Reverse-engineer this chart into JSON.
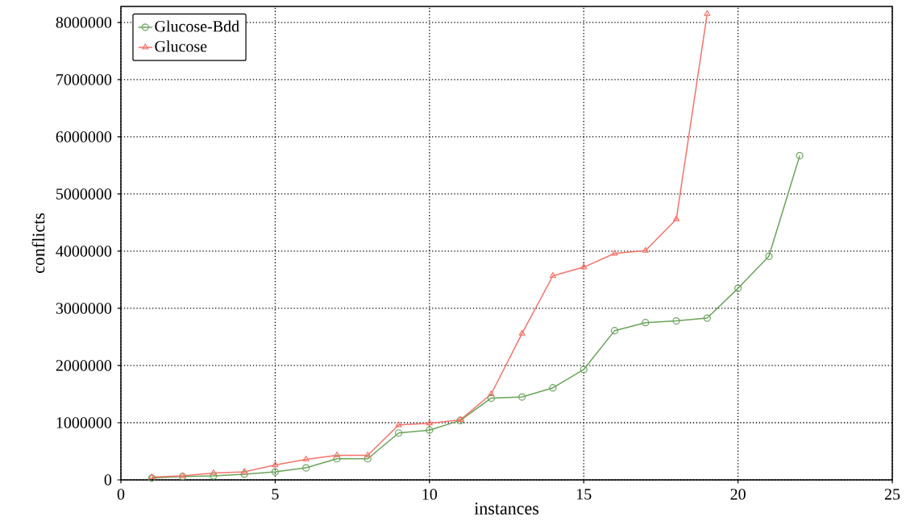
{
  "chart_data": {
    "type": "line",
    "xlabel": "instances",
    "ylabel": "conflicts",
    "series": [
      {
        "name": "Glucose-Bdd",
        "color": "#6aa35a",
        "marker": "circle",
        "x": [
          1,
          2,
          3,
          4,
          5,
          6,
          7,
          8,
          9,
          10,
          11,
          12,
          13,
          14,
          15,
          16,
          17,
          18,
          19,
          20,
          21,
          22
        ],
        "values": [
          30000,
          60000,
          70000,
          100000,
          140000,
          210000,
          370000,
          370000,
          820000,
          870000,
          1040000,
          1430000,
          1450000,
          1610000,
          1930000,
          2610000,
          2750000,
          2780000,
          2830000,
          3350000,
          3910000,
          5670000
        ]
      },
      {
        "name": "Glucose",
        "color": "#f4736a",
        "marker": "triangle",
        "x": [
          1,
          2,
          3,
          4,
          5,
          6,
          7,
          8,
          9,
          10,
          11,
          12,
          13,
          14,
          15,
          16,
          17,
          18,
          19
        ],
        "values": [
          50000,
          70000,
          120000,
          140000,
          260000,
          360000,
          430000,
          430000,
          960000,
          990000,
          1050000,
          1500000,
          2560000,
          3570000,
          3720000,
          3960000,
          4010000,
          4560000,
          8150000
        ]
      }
    ],
    "xlim": [
      0,
      25
    ],
    "ylim": [
      0,
      8280000
    ],
    "xticks": [
      0,
      5,
      10,
      15,
      20,
      25
    ],
    "yticks": [
      0,
      1000000,
      2000000,
      3000000,
      4000000,
      5000000,
      6000000,
      7000000,
      8000000
    ],
    "grid": true,
    "legend": "top left",
    "line_style": "solid"
  }
}
